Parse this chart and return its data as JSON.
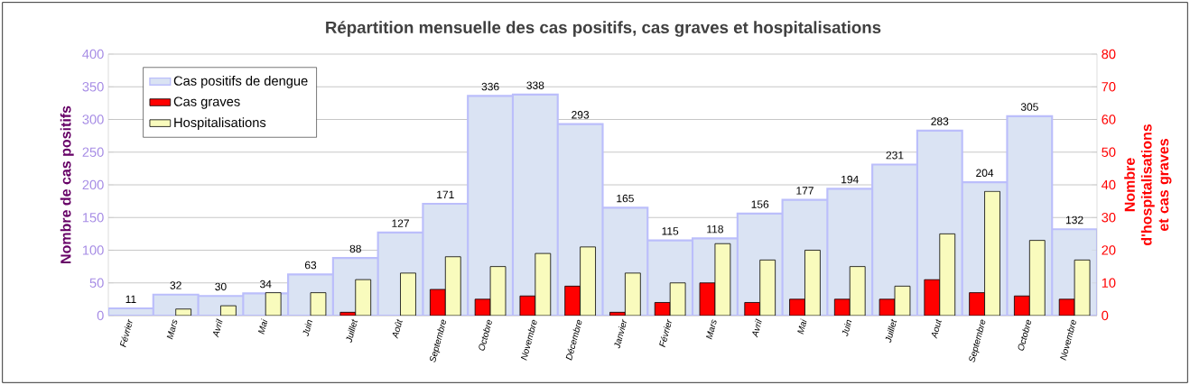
{
  "chart_data": {
    "type": "bar",
    "title": "Répartition mensuelle des cas positifs, cas graves et hospitalisations",
    "categories": [
      "Février",
      "Mars",
      "Avril",
      "Mai",
      "Juin",
      "Juillet",
      "Août",
      "Septembre",
      "Octobre",
      "Novembre",
      "Décembre",
      "Janvier",
      "Février",
      "Mars",
      "Avril",
      "Mai",
      "Juin",
      "Juillet",
      "Aout",
      "Septembre",
      "Octobre",
      "Novembre"
    ],
    "series": [
      {
        "name": "Cas positifs de dengue",
        "color": "#dae3f3",
        "values": [
          11,
          32,
          30,
          34,
          63,
          88,
          127,
          171,
          336,
          338,
          293,
          165,
          115,
          118,
          156,
          177,
          194,
          231,
          283,
          204,
          305,
          132
        ],
        "value_labels": [
          "11",
          "32",
          "30",
          "34",
          "63",
          "88",
          "127",
          "171",
          "336",
          "338",
          "293",
          "165",
          "115",
          "118",
          "156",
          "177",
          "194",
          "231",
          "283",
          "204",
          "305",
          "132"
        ]
      },
      {
        "name": "Cas graves",
        "color": "#ff0000",
        "axis": "y2",
        "values": [
          null,
          null,
          null,
          null,
          null,
          1,
          null,
          8,
          5,
          6,
          9,
          1,
          4,
          10,
          4,
          5,
          5,
          5,
          11,
          7,
          6,
          5
        ]
      },
      {
        "name": "Hospitalisations",
        "color": "#f9fbbd",
        "axis": "y2",
        "values": [
          null,
          2,
          3,
          7,
          7,
          11,
          13,
          18,
          15,
          19,
          21,
          13,
          10,
          22,
          17,
          20,
          15,
          9,
          25,
          38,
          23,
          17
        ]
      }
    ],
    "ylabel": "Nombre de cas positifs",
    "y2label": "Nombre d'hospitalisations et cas graves",
    "ylim": [
      0,
      400
    ],
    "yticks": [
      0,
      50,
      100,
      150,
      200,
      250,
      300,
      350,
      400
    ],
    "y2lim": [
      0,
      80
    ],
    "y2ticks": [
      0,
      10,
      20,
      30,
      40,
      50,
      60,
      70,
      80
    ],
    "grid": "y",
    "legend": "top left"
  }
}
